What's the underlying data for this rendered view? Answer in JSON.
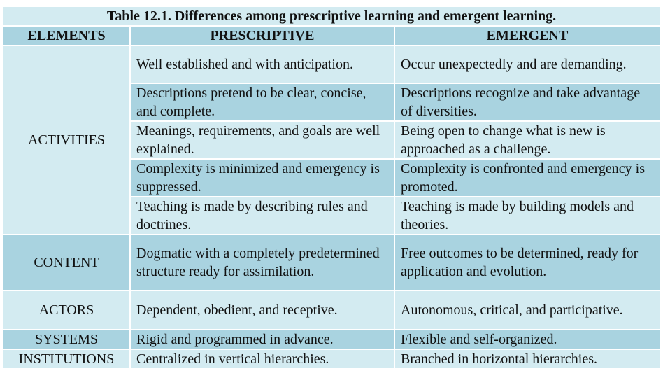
{
  "table": {
    "title": "Table 12.1. Differences among prescriptive learning and emergent learning.",
    "headers": {
      "elements": "ELEMENTS",
      "prescriptive": "PRESCRIPTIVE",
      "emergent": "EMERGENT"
    },
    "activities": {
      "label": "ACTIVITIES",
      "rows": [
        {
          "prescriptive": "Well established and with anticipation.",
          "emergent": "Occur unexpectedly and are demanding."
        },
        {
          "prescriptive": "Descriptions pretend to be clear, concise, and complete.",
          "emergent": "Descriptions recognize and take advantage of diversities."
        },
        {
          "prescriptive": "Meanings, requirements, and goals are well explained.",
          "emergent": "Being open to change what is new is approached as a challenge."
        },
        {
          "prescriptive": "Complexity is minimized and emergency is suppressed.",
          "emergent": "Complexity is confronted and emergency is promoted."
        },
        {
          "prescriptive": "Teaching is made by describing rules and doctrines.",
          "emergent": "Teaching is made by building models and theories."
        }
      ]
    },
    "content": {
      "label": "CONTENT",
      "prescriptive": "Dogmatic with a completely predetermined structure ready for assimilation.",
      "emergent": "Free outcomes to be determined, ready for application and evolution."
    },
    "actors": {
      "label": "ACTORS",
      "prescriptive": "Dependent, obedient, and receptive.",
      "emergent": "Autonomous, critical, and participative."
    },
    "systems": {
      "label": "SYSTEMS",
      "prescriptive": "Rigid and programmed in advance.",
      "emergent": "Flexible and self-organized."
    },
    "institutions": {
      "label": "INSTITUTIONS",
      "prescriptive": "Centralized in vertical hierarchies.",
      "emergent": "Branched in horizontal hierarchies."
    }
  }
}
